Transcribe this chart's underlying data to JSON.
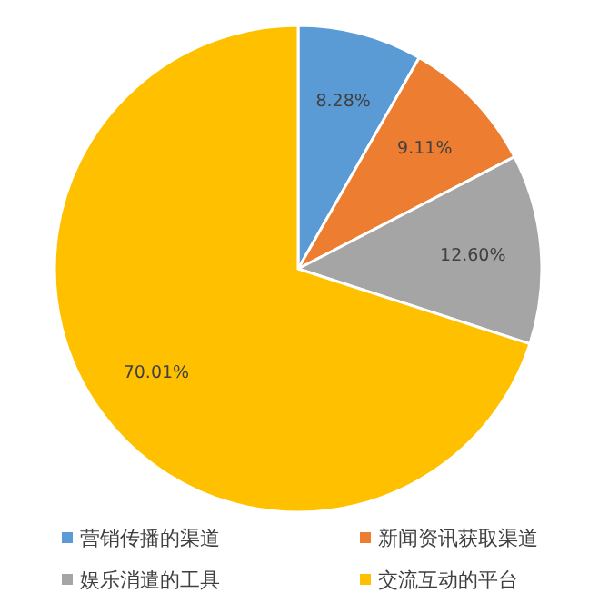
{
  "chart_data": {
    "type": "pie",
    "categories": [
      "营销传播的渠道",
      "新闻资讯获取渠道",
      "娱乐消遣的工具",
      "交流互动的平台"
    ],
    "values": [
      8.28,
      9.11,
      12.6,
      70.01
    ],
    "colors": [
      "#5b9bd5",
      "#ed7d31",
      "#a5a5a5",
      "#ffc000"
    ],
    "value_labels": [
      "8.28%",
      "9.11%",
      "12.60%",
      "70.01%"
    ],
    "legend": "bottom"
  }
}
